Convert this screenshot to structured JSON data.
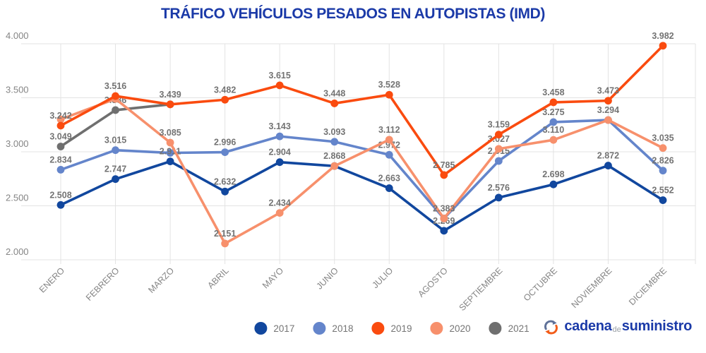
{
  "title": "TRÁFICO VEHÍCULOS PESADOS EN AUTOPISTAS (IMD)",
  "colors": {
    "title": "#1b3aa8",
    "gridline": "#e3e3e3",
    "axis_tick_text": "#858585",
    "data_label_text": "#737373",
    "legend_text": "#757575",
    "logo_blue": "#1b3aa8",
    "logo_gray_arc": "#5f7199",
    "logo_orange_arc": "#f25c19"
  },
  "chart_data": {
    "type": "line",
    "categories": [
      "ENERO",
      "FEBRERO",
      "MARZO",
      "ABRIL",
      "MAYO",
      "JUNIO",
      "JULIO",
      "AGOSTO",
      "SEPTIEMBRE",
      "OCTUBRE",
      "NOVIEMBRE",
      "DICIEMBRE"
    ],
    "title": "TRÁFICO VEHÍCULOS PESADOS EN AUTOPISTAS (IMD)",
    "xlabel": "",
    "ylabel": "",
    "ylim": [
      2000,
      4000
    ],
    "ytick_labels": [
      "4.000",
      "3.500",
      "3.000",
      "2.500",
      "2.000"
    ],
    "ytick_values": [
      4000,
      3500,
      3000,
      2500,
      2000
    ],
    "grid": true,
    "legend_position": "bottom",
    "series": [
      {
        "name": "2017",
        "color": "#11479e",
        "values": [
          2508,
          2747,
          2911,
          2632,
          2904,
          2868,
          2663,
          2269,
          2576,
          2698,
          2872,
          2552
        ],
        "labels": [
          "2.508",
          "2.747",
          "2.911",
          "2.632",
          "2.904",
          "",
          "2.663",
          "2.269",
          "2.576",
          "2.698",
          "2.872",
          "2.552"
        ]
      },
      {
        "name": "2018",
        "color": "#6485cb",
        "values": [
          2834,
          3015,
          2990,
          2996,
          3143,
          3093,
          2972,
          2383,
          2915,
          3275,
          3294,
          2826
        ],
        "labels": [
          "2.834",
          "3.015",
          "",
          "2.996",
          "3.143",
          "3.093",
          "2.972",
          "",
          "2.915",
          "3.275",
          "3.294",
          "2.826"
        ]
      },
      {
        "name": "2019",
        "color": "#fa4b0f",
        "values": [
          3242,
          3516,
          3439,
          3482,
          3615,
          3448,
          3528,
          2785,
          3159,
          3458,
          3473,
          3982
        ],
        "labels": [
          "3.242",
          "3.516",
          "3.439",
          "3.482",
          "3.615",
          "3.448",
          "3.528",
          "2.785",
          "3.159",
          "3.458",
          "3.473",
          "3.982"
        ]
      },
      {
        "name": "2020",
        "color": "#f7906c",
        "values": [
          3300,
          3490,
          3085,
          2151,
          2434,
          2868,
          3112,
          2383,
          3027,
          3110,
          3294,
          3035
        ],
        "labels": [
          "",
          "",
          "3.085",
          "2.151",
          "2.434",
          "2.868",
          "3.112",
          "2.383",
          "3.027",
          "3.110",
          "",
          "3.035"
        ]
      },
      {
        "name": "2021",
        "color": "#6f6f6f",
        "values": [
          3049,
          3386,
          3439,
          null,
          null,
          null,
          null,
          null,
          null,
          null,
          null,
          null
        ],
        "labels": [
          "3.049",
          "3.386",
          "",
          "",
          "",
          "",
          "",
          "",
          "",
          "",
          "",
          ""
        ]
      }
    ],
    "draw_order": [
      "2021",
      "2018",
      "2017",
      "2020",
      "2019"
    ]
  },
  "logo": {
    "cadena": "cadena",
    "de": "de",
    "suministro": "suministro"
  }
}
